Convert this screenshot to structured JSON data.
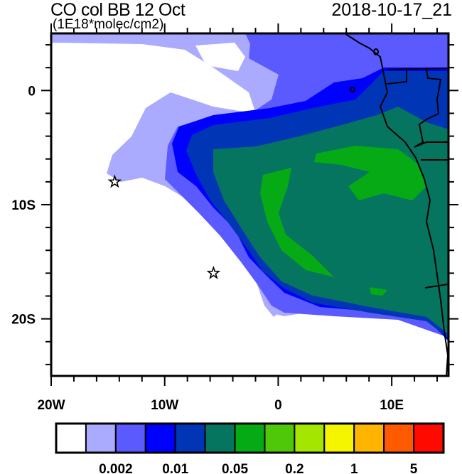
{
  "header": {
    "title": "CO col BB 12 Oct",
    "units": "(1E18*molec/cm2)",
    "timestamp": "2018-10-17_21"
  },
  "map": {
    "lon_range": [
      -20,
      15
    ],
    "lat_range": [
      -25,
      5
    ],
    "x_tick_labels": [
      {
        "lon": -20,
        "label": "20W"
      },
      {
        "lon": -10,
        "label": "10W"
      },
      {
        "lon": 0,
        "label": "0"
      },
      {
        "lon": 10,
        "label": "10E"
      }
    ],
    "y_tick_labels": [
      {
        "lat": 0,
        "label": "0"
      },
      {
        "lat": -10,
        "label": "10S"
      },
      {
        "lat": -20,
        "label": "20S"
      }
    ],
    "markers": [
      {
        "type": "star",
        "lon": -14.4,
        "lat": -8.0
      },
      {
        "type": "star",
        "lon": -5.7,
        "lat": -16.0
      }
    ]
  },
  "colorbar": {
    "colors": [
      "#ffffff",
      "#aaaaff",
      "#5a5aff",
      "#0000ff",
      "#0035b5",
      "#057560",
      "#05aa15",
      "#50c80a",
      "#a5e600",
      "#f5f500",
      "#ffb400",
      "#ff5a00",
      "#ff0a00"
    ],
    "labels": [
      {
        "boundary": 2,
        "label": "0.002"
      },
      {
        "boundary": 4,
        "label": "0.01"
      },
      {
        "boundary": 6,
        "label": "0.05"
      },
      {
        "boundary": 8,
        "label": "0.2"
      },
      {
        "boundary": 10,
        "label": "1"
      },
      {
        "boundary": 12,
        "label": "5"
      }
    ]
  }
}
